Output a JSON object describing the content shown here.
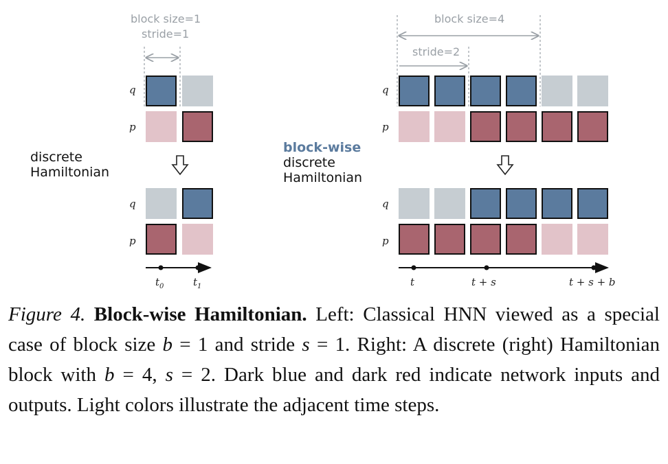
{
  "left": {
    "annotation": {
      "line1": "block size=1",
      "line2": "stride=1"
    },
    "side_label": {
      "line1": "discrete",
      "line2": "Hamiltonian"
    },
    "top": {
      "q_label": "q",
      "p_label": "p",
      "q_cells": [
        "dark-blue",
        "light-blue"
      ],
      "p_cells": [
        "light-red",
        "dark-red"
      ]
    },
    "bottom": {
      "q_label": "q",
      "p_label": "p",
      "q_cells": [
        "light-blue",
        "dark-blue"
      ],
      "p_cells": [
        "dark-red",
        "light-red"
      ]
    },
    "ticks": {
      "t0_base": "t",
      "t0_sub": "0",
      "t1_base": "t",
      "t1_sub": "1"
    }
  },
  "right": {
    "annotation_block": "block size=4",
    "annotation_stride": "stride=2",
    "side_label": {
      "highlight": "block-wise",
      "line2": "discrete",
      "line3": "Hamiltonian"
    },
    "top": {
      "q_label": "q",
      "p_label": "p",
      "q_cells": [
        "dark-blue",
        "dark-blue",
        "dark-blue",
        "dark-blue",
        "light-blue",
        "light-blue"
      ],
      "p_cells": [
        "light-red",
        "light-red",
        "dark-red",
        "dark-red",
        "dark-red",
        "dark-red"
      ]
    },
    "bottom": {
      "q_label": "q",
      "p_label": "p",
      "q_cells": [
        "light-blue",
        "light-blue",
        "dark-blue",
        "dark-blue",
        "dark-blue",
        "dark-blue"
      ],
      "p_cells": [
        "dark-red",
        "dark-red",
        "dark-red",
        "dark-red",
        "light-red",
        "light-red"
      ]
    },
    "ticks": {
      "t": "t",
      "t_plus_s": "t + s",
      "t_plus_s_plus_b": "t + s + b"
    }
  },
  "colors": {
    "dark_blue": "#5b7b9e",
    "light_blue": "#c6cdd2",
    "dark_red": "#a9656f",
    "light_red": "#e2c3c9"
  },
  "caption": {
    "figure_label": "Figure 4.",
    "title": "Block-wise Hamiltonian.",
    "text1": " Left: Classical HNN viewed as a special case of block size ",
    "b1": "b",
    "text2": " = 1 and stride ",
    "s1": "s",
    "text3": " = 1. Right: A discrete (right) Hamiltonian block with ",
    "b2": "b",
    "text4": " = 4, ",
    "s2": "s",
    "text5": " = 2. Dark blue and dark red indicate network inputs and outputs. Light colors illustrate the adjacent time steps."
  }
}
